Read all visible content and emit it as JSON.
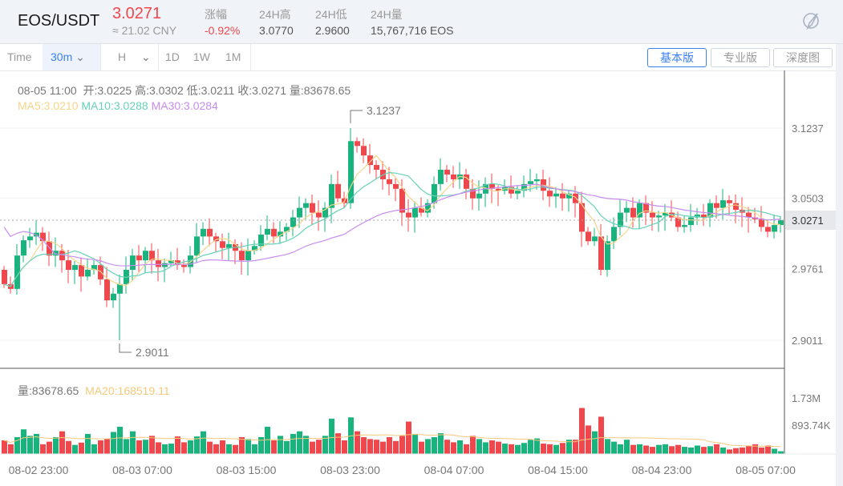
{
  "header": {
    "pair": "EOS/USDT",
    "price": "3.0271",
    "cny": "≈ 21.02 CNY",
    "stats": [
      {
        "label": "涨幅",
        "value": "-0.92%"
      },
      {
        "label": "24H高",
        "value": "3.0770"
      },
      {
        "label": "24H低",
        "value": "2.9600"
      },
      {
        "label": "24H量",
        "value": "15,767,716 EOS"
      }
    ],
    "theme_icon": "paintbrush-icon"
  },
  "toolbar": {
    "time": "Time",
    "interval": "30m",
    "hour": "H",
    "periods": [
      "1D",
      "1W",
      "1M"
    ],
    "views": [
      "基本版",
      "专业版",
      "深度图"
    ]
  },
  "info": {
    "date": "08-05 11:00",
    "open": "开:3.0225",
    "high": "高:3.0302",
    "low": "低:3.0211",
    "close": "收:3.0271",
    "vol": "量:83678.65",
    "ma5": "MA5:3.0210",
    "ma10": "MA10:3.0288",
    "ma30": "MA30:3.0284",
    "vol_label": "量:83678.65",
    "vol_ma20": "MA20:168519.11"
  },
  "colors": {
    "up": "#19b37d",
    "down": "#f0474d",
    "ma5": "#f5d58a",
    "ma10": "#66d1b8",
    "ma30": "#c88cf0",
    "volma": "#f5c97a"
  },
  "chart_data": {
    "type": "candlestick",
    "title": "EOS/USDT 30m",
    "price_ticks": [
      "3.1237",
      "3.0503",
      "2.9761",
      "2.9011"
    ],
    "price_range": [
      2.9011,
      3.1237
    ],
    "current_price": "3.0271",
    "max_label": "3.1237",
    "min_label": "2.9011",
    "volume_ticks": [
      "1.73M",
      "893.74K"
    ],
    "time_labels": [
      "08-02 23:00",
      "08-03 07:00",
      "08-03 15:00",
      "08-03 23:00",
      "08-04 07:00",
      "08-04 15:00",
      "08-04 23:00",
      "08-05 07:00"
    ],
    "first_open": 2.975,
    "closes": [
      2.96,
      2.955,
      2.99,
      3.006,
      3.01,
      3.014,
      3.005,
      2.99,
      2.995,
      2.985,
      2.975,
      2.98,
      2.968,
      2.975,
      2.98,
      2.965,
      2.943,
      2.95,
      2.96,
      2.975,
      2.99,
      2.985,
      2.995,
      2.985,
      2.978,
      2.982,
      2.985,
      2.98,
      2.978,
      2.99,
      3.01,
      3.018,
      3.01,
      3.005,
      2.998,
      3.002,
      2.995,
      2.985,
      2.995,
      3.0,
      3.012,
      3.018,
      3.01,
      3.015,
      3.02,
      3.03,
      3.04,
      3.045,
      3.035,
      3.03,
      3.04,
      3.065,
      3.05,
      3.045,
      3.11,
      3.105,
      3.095,
      3.085,
      3.08,
      3.07,
      3.065,
      3.06,
      3.035,
      3.03,
      3.04,
      3.035,
      3.045,
      3.065,
      3.08,
      3.075,
      3.07,
      3.075,
      3.06,
      3.05,
      3.055,
      3.065,
      3.06,
      3.058,
      3.062,
      3.055,
      3.058,
      3.065,
      3.068,
      3.07,
      3.058,
      3.052,
      3.055,
      3.05,
      3.055,
      3.045,
      3.015,
      3.005,
      3.01,
      2.975,
      3.005,
      3.02,
      3.035,
      3.04,
      3.03,
      3.045,
      3.035,
      3.03,
      3.032,
      3.035,
      3.03,
      3.02,
      3.022,
      3.03,
      3.033,
      3.03,
      3.045,
      3.04,
      3.048,
      3.045,
      3.038,
      3.035,
      3.03,
      3.028,
      3.02,
      3.015,
      3.022,
      3.0271
    ],
    "volumes_k": [
      420,
      300,
      520,
      760,
      560,
      620,
      300,
      380,
      520,
      700,
      400,
      280,
      350,
      620,
      300,
      420,
      460,
      680,
      840,
      460,
      700,
      420,
      440,
      560,
      360,
      300,
      320,
      540,
      360,
      420,
      540,
      700,
      380,
      300,
      420,
      300,
      280,
      520,
      460,
      300,
      520,
      840,
      420,
      560,
      400,
      620,
      700,
      560,
      380,
      440,
      560,
      1090,
      640,
      420,
      1130,
      700,
      520,
      460,
      440,
      380,
      520,
      400,
      560,
      1000,
      620,
      380,
      460,
      520,
      640,
      440,
      360,
      420,
      300,
      560,
      460,
      360,
      420,
      380,
      320,
      300,
      280,
      340,
      440,
      480,
      320,
      300,
      280,
      340,
      440,
      440,
      1420,
      880,
      700,
      1150,
      460,
      380,
      300,
      440,
      280,
      300,
      260,
      220,
      280,
      300,
      240,
      280,
      220,
      200,
      260,
      220,
      240,
      300,
      200,
      140,
      180,
      200,
      260,
      300,
      200,
      260,
      160,
      84
    ],
    "indicators": [
      "MA5",
      "MA10",
      "MA30",
      "VOL MA20"
    ]
  }
}
